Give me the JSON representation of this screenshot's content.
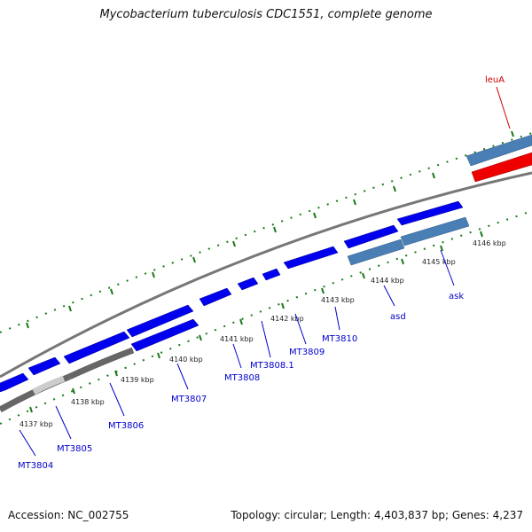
{
  "title": "Mycobacterium tuberculosis CDC1551, complete genome",
  "footer": {
    "accession": "Accession: NC_002755",
    "topology": "Topology: circular; Length: 4,403,837 bp; Genes: 4,237"
  },
  "colors": {
    "forward_gene": "#0000ee",
    "highlight_gene": "#ee0000",
    "label_blue": "#0000cc",
    "label_red": "#cc0000",
    "steel_track": "#4a7fb5",
    "gray_track": "#666666",
    "tick_green": "#1a7a1a"
  },
  "kbp_ticks": [
    "4137 kbp",
    "4138 kbp",
    "4139 kbp",
    "4140 kbp",
    "4141 kbp",
    "4142 kbp",
    "4143 kbp",
    "4144 kbp",
    "4145 kbp",
    "4146 kbp"
  ],
  "gene_labels": [
    {
      "id": "mt3804",
      "text": "MT3804",
      "color": "blue"
    },
    {
      "id": "mt3805",
      "text": "MT3805",
      "color": "blue"
    },
    {
      "id": "mt3806",
      "text": "MT3806",
      "color": "blue"
    },
    {
      "id": "mt3807",
      "text": "MT3807",
      "color": "blue"
    },
    {
      "id": "mt3808",
      "text": "MT3808",
      "color": "blue"
    },
    {
      "id": "mt3808-1",
      "text": "MT3808.1",
      "color": "blue"
    },
    {
      "id": "mt3809",
      "text": "MT3809",
      "color": "blue"
    },
    {
      "id": "mt3810",
      "text": "MT3810",
      "color": "blue"
    },
    {
      "id": "asd",
      "text": "asd",
      "color": "blue"
    },
    {
      "id": "ask",
      "text": "ask",
      "color": "blue"
    },
    {
      "id": "leua",
      "text": "leuA",
      "color": "red"
    }
  ]
}
